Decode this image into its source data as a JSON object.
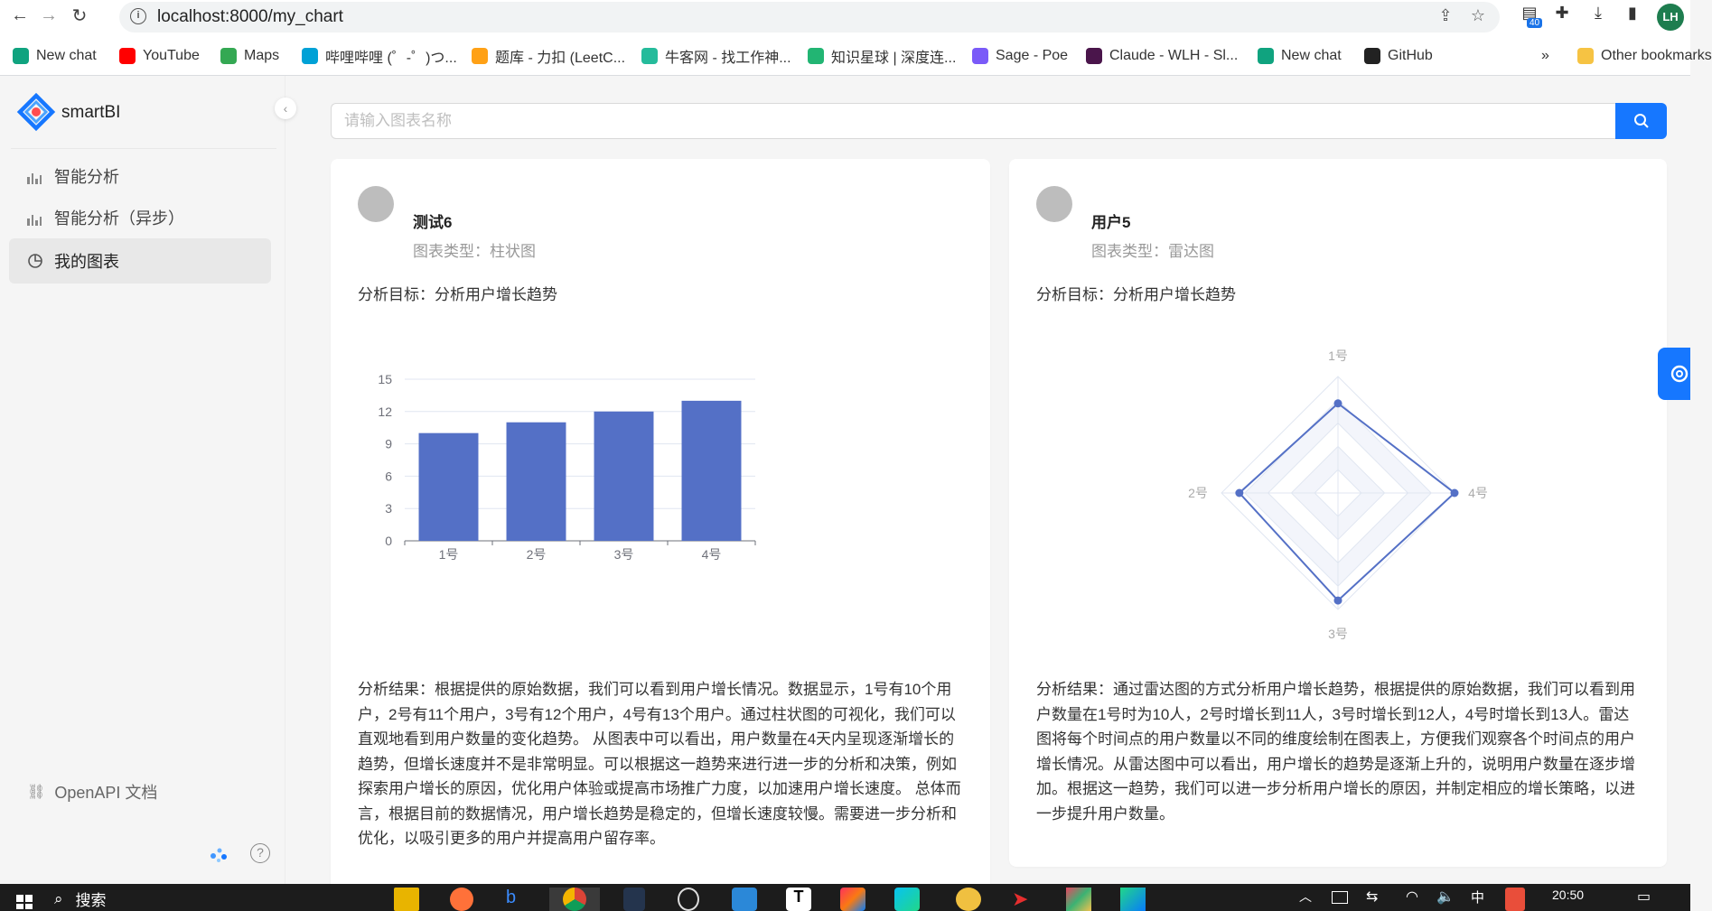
{
  "browser": {
    "url": "localhost:8000/my_chart",
    "extension_badge": "40",
    "profile_initials": "LH",
    "bookmarks": [
      {
        "label": "New chat",
        "color": "#10a37f"
      },
      {
        "label": "YouTube",
        "color": "#ff0000"
      },
      {
        "label": "Maps",
        "color": "#34a853"
      },
      {
        "label": "哔哩哔哩 (゜-゜)つ...",
        "color": "#00a1d6"
      },
      {
        "label": "题库 - 力扣 (LeetC...",
        "color": "#ffa116"
      },
      {
        "label": "牛客网 - 找工作神...",
        "color": "#25bb9b"
      },
      {
        "label": "知识星球 | 深度连...",
        "color": "#22b573"
      },
      {
        "label": "Sage - Poe",
        "color": "#7a5af8"
      },
      {
        "label": "Claude - WLH - Sl...",
        "color": "#4a154b"
      },
      {
        "label": "New chat",
        "color": "#10a37f"
      },
      {
        "label": "GitHub",
        "color": "#222222"
      }
    ],
    "bookmarks_overflow": "»",
    "other_bookmarks": "Other bookmarks"
  },
  "sidebar": {
    "brand": "smartBI",
    "menu": [
      {
        "label": "智能分析",
        "icon": "bar-chart-icon"
      },
      {
        "label": "智能分析（异步）",
        "icon": "bar-chart-icon"
      },
      {
        "label": "我的图表",
        "icon": "pie-chart-icon"
      }
    ],
    "openapi_label": "OpenAPI 文档"
  },
  "search": {
    "placeholder": "请输入图表名称",
    "value": ""
  },
  "cards": [
    {
      "name": "测试6",
      "chart_type_text": "图表类型：柱状图",
      "goal_text": "分析目标：分析用户增长趋势",
      "result_text": "分析结果：根据提供的原始数据，我们可以看到用户增长情况。数据显示，1号有10个用户，2号有11个用户，3号有12个用户，4号有13个用户。通过柱状图的可视化，我们可以直观地看到用户数量的变化趋势。 从图表中可以看出，用户数量在4天内呈现逐渐增长的趋势，但增长速度并不是非常明显。可以根据这一趋势来进行进一步的分析和决策，例如探索用户增长的原因，优化用户体验或提高市场推广力度，以加速用户增长速度。 总体而言，根据目前的数据情况，用户增长趋势是稳定的，但增长速度较慢。需要进一步分析和优化，以吸引更多的用户并提高用户留存率。"
    },
    {
      "name": "用户5",
      "chart_type_text": "图表类型：雷达图",
      "goal_text": "分析目标：分析用户增长趋势",
      "result_text": "分析结果：通过雷达图的方式分析用户增长趋势，根据提供的原始数据，我们可以看到用户数量在1号时为10人，2号时增长到11人，3号时增长到12人，4号时增长到13人。雷达图将每个时间点的用户数量以不同的维度绘制在图表上，方便我们观察各个时间点的用户增长情况。从雷达图中可以看出，用户增长的趋势是逐渐上升的，说明用户数量在逐步增加。根据这一趋势，我们可以进一步分析用户增长的原因，并制定相应的增长策略，以进一步提升用户数量。"
    }
  ],
  "chart_data": [
    {
      "type": "bar",
      "categories": [
        "1号",
        "2号",
        "3号",
        "4号"
      ],
      "values": [
        10,
        11,
        12,
        13
      ],
      "ylim": [
        0,
        15
      ],
      "yticks": [
        0,
        3,
        6,
        9,
        12,
        15
      ],
      "color": "#5470c6",
      "grid": true
    },
    {
      "type": "radar",
      "indicators": [
        "1号",
        "4号",
        "3号",
        "2号"
      ],
      "values": [
        10,
        13,
        12,
        11
      ],
      "max": 13,
      "color": "#5470c6"
    }
  ],
  "taskbar": {
    "search_label": "搜索",
    "time": "20:50",
    "ime": "中"
  },
  "colors": {
    "accent": "#1677ff",
    "series": "#5470c6"
  }
}
